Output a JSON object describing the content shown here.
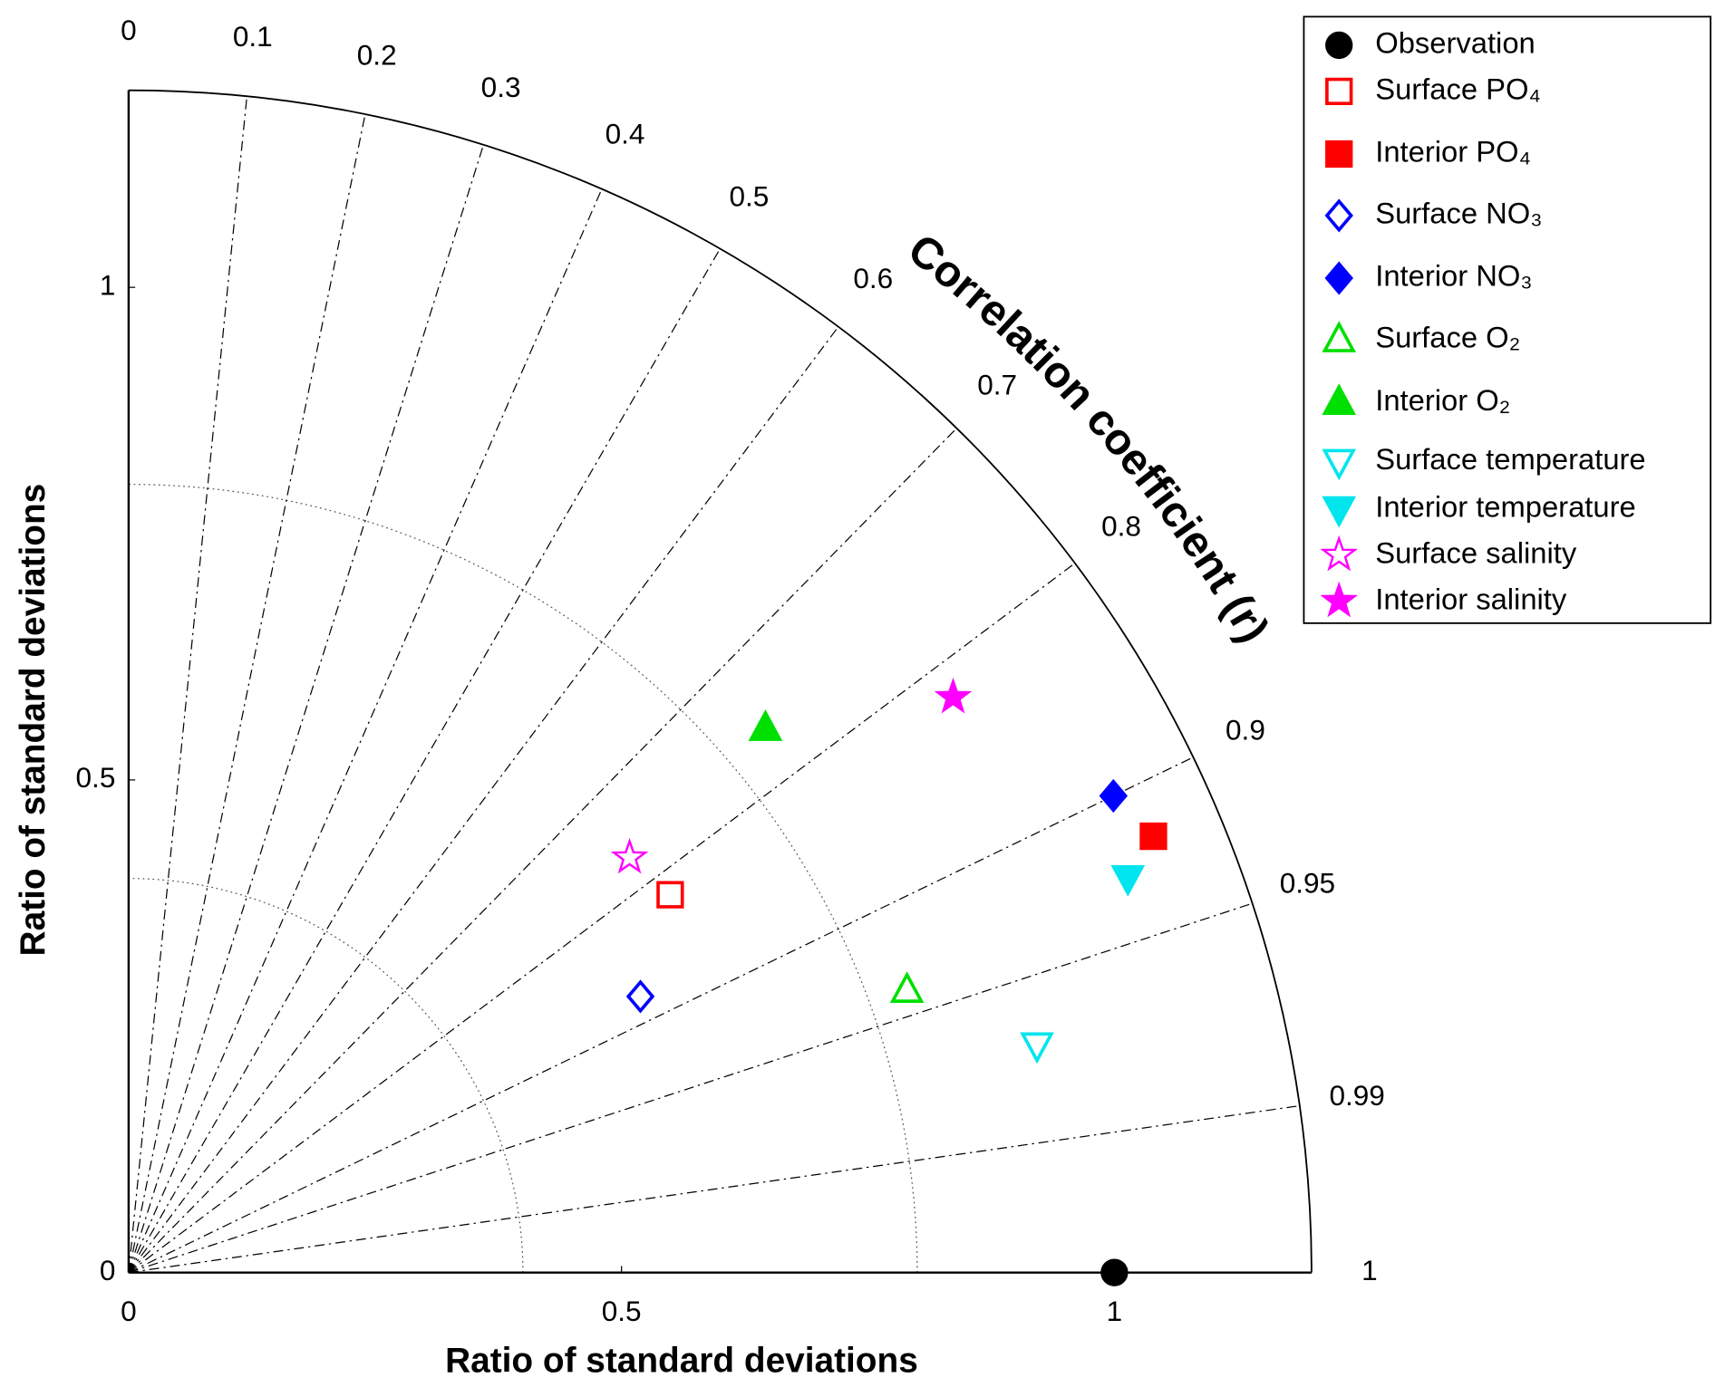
{
  "chart_data": {
    "type": "taylor",
    "xlabel": "Ratio of standard deviations",
    "ylabel": "Ratio of standard deviations",
    "corr_label": "Correlation coefficient (r)",
    "rlim": [
      0,
      1.2
    ],
    "rticks": [
      0,
      0.5,
      1
    ],
    "rgrid": [
      0.4,
      0.8
    ],
    "corr_ticks": [
      0,
      0.1,
      0.2,
      0.3,
      0.4,
      0.5,
      0.6,
      0.7,
      0.8,
      0.9,
      0.95,
      0.99,
      1
    ],
    "legend": "upper right",
    "series": [
      {
        "name": "Observation",
        "color": "#000000",
        "marker": "circle",
        "filled": true,
        "std": 1,
        "corr": 1
      },
      {
        "name": "Surface PO₄",
        "color": "#ff0000",
        "marker": "square",
        "filled": false,
        "std": 0.67,
        "corr": 0.82
      },
      {
        "name": "Interior PO₄",
        "color": "#ff0000",
        "marker": "square",
        "filled": true,
        "std": 1.13,
        "corr": 0.92
      },
      {
        "name": "Surface NO₃",
        "color": "#0000ff",
        "marker": "diamond",
        "filled": false,
        "std": 0.59,
        "corr": 0.88
      },
      {
        "name": "Interior NO₃",
        "color": "#0000ff",
        "marker": "diamond",
        "filled": true,
        "std": 1.11,
        "corr": 0.9
      },
      {
        "name": "Surface O₂",
        "color": "#00e000",
        "marker": "triangle-up",
        "filled": false,
        "std": 0.84,
        "corr": 0.94
      },
      {
        "name": "Interior O₂",
        "color": "#00e000",
        "marker": "triangle-up",
        "filled": true,
        "std": 0.85,
        "corr": 0.76
      },
      {
        "name": "Surface temperature",
        "color": "#00e5ee",
        "marker": "triangle-down",
        "filled": false,
        "std": 0.95,
        "corr": 0.97
      },
      {
        "name": "Interior temperature",
        "color": "#00e5ee",
        "marker": "triangle-down",
        "filled": true,
        "std": 1.09,
        "corr": 0.93
      },
      {
        "name": "Surface salinity",
        "color": "#ff00ff",
        "marker": "star",
        "filled": false,
        "std": 0.66,
        "corr": 0.77
      },
      {
        "name": "Interior salinity",
        "color": "#ff00ff",
        "marker": "star",
        "filled": true,
        "std": 1.02,
        "corr": 0.82
      }
    ]
  }
}
